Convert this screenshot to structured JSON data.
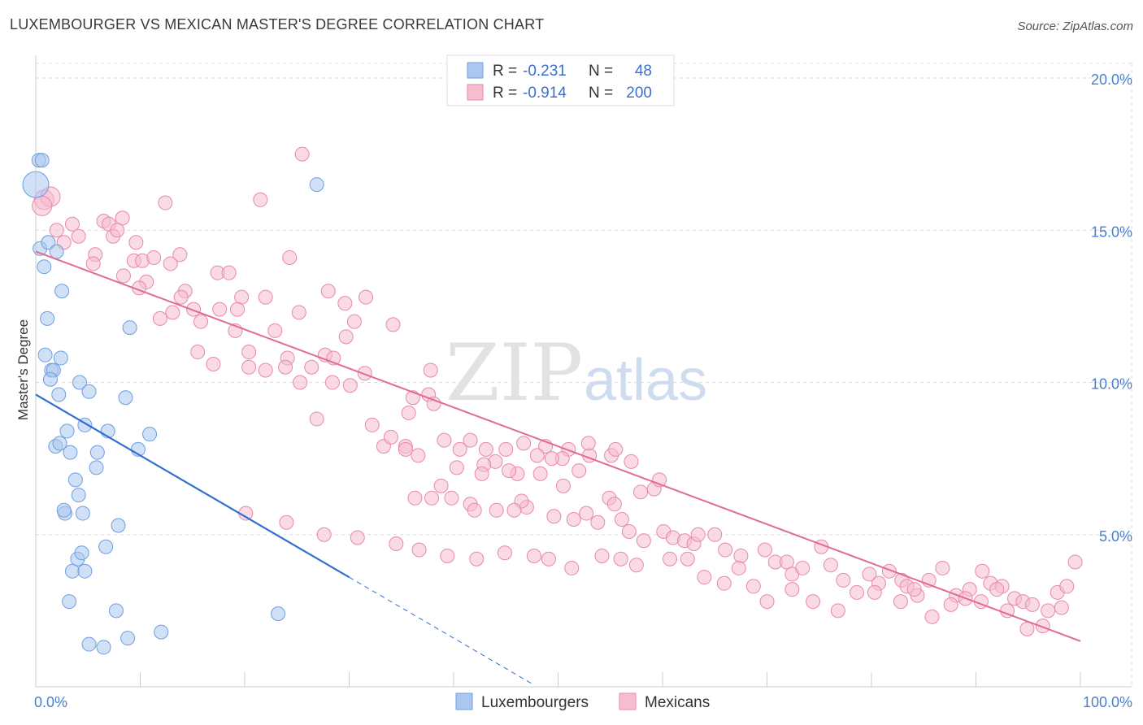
{
  "header": {
    "title": "LUXEMBOURGER VS MEXICAN MASTER'S DEGREE CORRELATION CHART",
    "source": "Source: ZipAtlas.com"
  },
  "watermark": {
    "zip": "ZIP",
    "atlas": "atlas"
  },
  "legend": {
    "rows": [
      {
        "r_label": "R =",
        "r_value": "-0.231",
        "n_label": "N =",
        "n_value": "48",
        "color": "#a9c7ef",
        "stroke": "#6f9ee0"
      },
      {
        "r_label": "R =",
        "r_value": "-0.914",
        "n_label": "N =",
        "n_value": "200",
        "color": "#f6bcd0",
        "stroke": "#e889a8"
      }
    ]
  },
  "bottom_legend": [
    {
      "label": "Luxembourgers",
      "color": "#a9c7ef",
      "stroke": "#6f9ee0"
    },
    {
      "label": "Mexicans",
      "color": "#f6bcd0",
      "stroke": "#e889a8"
    }
  ],
  "chart_data": {
    "type": "scatter",
    "title": "LUXEMBOURGER VS MEXICAN MASTER'S DEGREE CORRELATION CHART",
    "xlabel": "",
    "ylabel": "Master's Degree",
    "xlim": [
      0,
      100
    ],
    "ylim": [
      0,
      20
    ],
    "x_tick_labels": [
      "0.0%",
      "100.0%"
    ],
    "y_ticks": [
      5,
      10,
      15,
      20
    ],
    "y_tick_labels": [
      "5.0%",
      "10.0%",
      "15.0%",
      "20.0%"
    ],
    "grid": true,
    "colors": {
      "lux_fill": "#a9c7ef",
      "lux_stroke": "#6f9ee0",
      "lux_line": "#2f6fd0",
      "mex_fill": "#f6bcd0",
      "mex_stroke": "#e889a8",
      "mex_line": "#e06b94"
    },
    "series": [
      {
        "name": "Luxembourgers",
        "r": -0.231,
        "n": 48,
        "trend": {
          "x0": 0,
          "y0": 9.6,
          "x1": 30,
          "y1": 3.6,
          "dash_to_x": 47.5
        },
        "points": [
          [
            0,
            16.5
          ],
          [
            0.3,
            17.3
          ],
          [
            0.6,
            17.3
          ],
          [
            0.4,
            14.4
          ],
          [
            1.2,
            14.6
          ],
          [
            2.0,
            14.3
          ],
          [
            0.8,
            13.8
          ],
          [
            2.5,
            13.0
          ],
          [
            1.1,
            12.1
          ],
          [
            0.9,
            10.9
          ],
          [
            2.4,
            10.8
          ],
          [
            1.5,
            10.4
          ],
          [
            1.7,
            10.4
          ],
          [
            1.4,
            10.1
          ],
          [
            4.2,
            10.0
          ],
          [
            5.1,
            9.7
          ],
          [
            2.2,
            9.6
          ],
          [
            8.6,
            9.5
          ],
          [
            3.0,
            8.4
          ],
          [
            4.7,
            8.6
          ],
          [
            6.9,
            8.4
          ],
          [
            10.9,
            8.3
          ],
          [
            1.9,
            7.9
          ],
          [
            2.3,
            8.0
          ],
          [
            3.3,
            7.7
          ],
          [
            5.9,
            7.7
          ],
          [
            9.8,
            7.8
          ],
          [
            5.8,
            7.2
          ],
          [
            3.8,
            6.8
          ],
          [
            4.1,
            6.3
          ],
          [
            2.8,
            5.7
          ],
          [
            2.7,
            5.8
          ],
          [
            4.5,
            5.7
          ],
          [
            7.9,
            5.3
          ],
          [
            6.7,
            4.6
          ],
          [
            4.0,
            4.2
          ],
          [
            4.4,
            4.4
          ],
          [
            3.5,
            3.8
          ],
          [
            4.7,
            3.8
          ],
          [
            9.0,
            11.8
          ],
          [
            26.9,
            16.5
          ],
          [
            3.2,
            2.8
          ],
          [
            7.7,
            2.5
          ],
          [
            23.2,
            2.4
          ],
          [
            5.1,
            1.4
          ],
          [
            6.5,
            1.3
          ],
          [
            8.8,
            1.6
          ],
          [
            12.0,
            1.8
          ]
        ]
      },
      {
        "name": "Mexicans",
        "r": -0.914,
        "n": 200,
        "trend": {
          "x0": 0,
          "y0": 14.3,
          "x1": 100,
          "y1": 1.5
        },
        "points": [
          [
            0.8,
            16.0
          ],
          [
            1.4,
            16.1
          ],
          [
            0.6,
            15.8
          ],
          [
            2.0,
            15.0
          ],
          [
            3.5,
            15.2
          ],
          [
            2.7,
            14.6
          ],
          [
            4.1,
            14.8
          ],
          [
            6.5,
            15.3
          ],
          [
            8.3,
            15.4
          ],
          [
            9.6,
            14.6
          ],
          [
            7.0,
            15.2
          ],
          [
            7.4,
            14.8
          ],
          [
            7.8,
            15.0
          ],
          [
            12.4,
            15.9
          ],
          [
            21.5,
            16.0
          ],
          [
            25.5,
            17.5
          ],
          [
            5.7,
            14.2
          ],
          [
            9.4,
            14.0
          ],
          [
            10.2,
            14.0
          ],
          [
            11.3,
            14.1
          ],
          [
            12.9,
            13.9
          ],
          [
            13.8,
            14.2
          ],
          [
            24.3,
            14.1
          ],
          [
            5.5,
            13.9
          ],
          [
            8.4,
            13.5
          ],
          [
            10.6,
            13.3
          ],
          [
            9.9,
            13.1
          ],
          [
            17.4,
            13.6
          ],
          [
            18.5,
            13.6
          ],
          [
            14.3,
            13.0
          ],
          [
            13.9,
            12.8
          ],
          [
            19.7,
            12.8
          ],
          [
            22.0,
            12.8
          ],
          [
            28.0,
            13.0
          ],
          [
            31.6,
            12.8
          ],
          [
            29.6,
            12.6
          ],
          [
            15.1,
            12.4
          ],
          [
            13.1,
            12.3
          ],
          [
            17.6,
            12.4
          ],
          [
            19.3,
            12.4
          ],
          [
            25.2,
            12.3
          ],
          [
            34.2,
            11.9
          ],
          [
            11.9,
            12.1
          ],
          [
            15.8,
            12.0
          ],
          [
            19.1,
            11.7
          ],
          [
            22.9,
            11.7
          ],
          [
            29.7,
            11.5
          ],
          [
            30.5,
            12.0
          ],
          [
            15.5,
            11.0
          ],
          [
            20.4,
            11.0
          ],
          [
            24.1,
            10.8
          ],
          [
            27.7,
            10.9
          ],
          [
            28.5,
            10.8
          ],
          [
            17.0,
            10.6
          ],
          [
            20.4,
            10.5
          ],
          [
            22.0,
            10.4
          ],
          [
            23.9,
            10.5
          ],
          [
            26.4,
            10.5
          ],
          [
            31.5,
            10.3
          ],
          [
            37.8,
            10.4
          ],
          [
            25.3,
            10.0
          ],
          [
            28.4,
            10.0
          ],
          [
            30.1,
            9.9
          ],
          [
            37.6,
            9.6
          ],
          [
            36.1,
            9.5
          ],
          [
            38.1,
            9.3
          ],
          [
            35.7,
            9.0
          ],
          [
            26.9,
            8.8
          ],
          [
            32.2,
            8.6
          ],
          [
            33.3,
            7.9
          ],
          [
            35.4,
            7.9
          ],
          [
            34.0,
            8.2
          ],
          [
            39.1,
            8.1
          ],
          [
            41.6,
            8.1
          ],
          [
            45.0,
            7.8
          ],
          [
            46.7,
            8.0
          ],
          [
            48.8,
            7.9
          ],
          [
            51.0,
            7.8
          ],
          [
            55.1,
            7.6
          ],
          [
            57.0,
            7.4
          ],
          [
            53.0,
            7.6
          ],
          [
            50.4,
            7.5
          ],
          [
            48.0,
            7.6
          ],
          [
            49.4,
            7.5
          ],
          [
            43.1,
            7.8
          ],
          [
            40.3,
            7.2
          ],
          [
            44.0,
            7.4
          ],
          [
            42.9,
            7.3
          ],
          [
            46.1,
            7.0
          ],
          [
            48.3,
            7.0
          ],
          [
            52.9,
            8.0
          ],
          [
            55.5,
            7.8
          ],
          [
            40.6,
            7.8
          ],
          [
            42.7,
            7.0
          ],
          [
            38.8,
            6.6
          ],
          [
            45.3,
            7.1
          ],
          [
            36.6,
            7.6
          ],
          [
            35.4,
            7.8
          ],
          [
            52.0,
            7.1
          ],
          [
            57.9,
            6.4
          ],
          [
            59.2,
            6.5
          ],
          [
            59.7,
            6.8
          ],
          [
            50.5,
            6.6
          ],
          [
            54.9,
            6.2
          ],
          [
            47.0,
            5.9
          ],
          [
            46.5,
            6.1
          ],
          [
            55.4,
            6.0
          ],
          [
            37.9,
            6.2
          ],
          [
            39.8,
            6.2
          ],
          [
            36.3,
            6.2
          ],
          [
            41.6,
            6.0
          ],
          [
            42.0,
            5.8
          ],
          [
            44.1,
            5.8
          ],
          [
            45.8,
            5.8
          ],
          [
            49.6,
            5.6
          ],
          [
            51.5,
            5.5
          ],
          [
            52.7,
            5.7
          ],
          [
            53.8,
            5.4
          ],
          [
            56.1,
            5.5
          ],
          [
            56.8,
            5.1
          ],
          [
            58.2,
            4.8
          ],
          [
            60.1,
            5.1
          ],
          [
            61.0,
            4.9
          ],
          [
            62.1,
            4.8
          ],
          [
            63.0,
            4.7
          ],
          [
            63.4,
            5.0
          ],
          [
            65.0,
            5.0
          ],
          [
            66.0,
            4.5
          ],
          [
            67.5,
            4.3
          ],
          [
            69.8,
            4.5
          ],
          [
            70.8,
            4.1
          ],
          [
            71.9,
            4.1
          ],
          [
            72.4,
            3.7
          ],
          [
            73.4,
            3.9
          ],
          [
            75.2,
            4.6
          ],
          [
            76.1,
            4.0
          ],
          [
            77.3,
            3.5
          ],
          [
            79.8,
            3.7
          ],
          [
            80.7,
            3.4
          ],
          [
            81.7,
            3.8
          ],
          [
            82.9,
            3.5
          ],
          [
            83.4,
            3.3
          ],
          [
            84.4,
            3.0
          ],
          [
            85.5,
            3.5
          ],
          [
            86.8,
            3.9
          ],
          [
            88.1,
            3.0
          ],
          [
            89.4,
            3.2
          ],
          [
            90.6,
            3.8
          ],
          [
            91.4,
            3.4
          ],
          [
            92.5,
            3.3
          ],
          [
            93.7,
            2.9
          ],
          [
            94.5,
            2.8
          ],
          [
            95.4,
            2.7
          ],
          [
            96.9,
            2.5
          ],
          [
            97.8,
            3.1
          ],
          [
            98.7,
            3.3
          ],
          [
            99.5,
            4.1
          ],
          [
            98.2,
            2.6
          ],
          [
            96.4,
            2.0
          ],
          [
            94.9,
            1.9
          ],
          [
            93.0,
            2.5
          ],
          [
            92.0,
            3.2
          ],
          [
            90.5,
            2.8
          ],
          [
            89.0,
            2.9
          ],
          [
            87.6,
            2.7
          ],
          [
            85.8,
            2.3
          ],
          [
            84.1,
            3.2
          ],
          [
            82.8,
            2.8
          ],
          [
            80.3,
            3.1
          ],
          [
            78.6,
            3.1
          ],
          [
            76.8,
            2.5
          ],
          [
            74.4,
            2.8
          ],
          [
            72.4,
            3.2
          ],
          [
            70.0,
            2.8
          ],
          [
            68.7,
            3.3
          ],
          [
            67.3,
            3.9
          ],
          [
            65.9,
            3.4
          ],
          [
            64.0,
            3.6
          ],
          [
            62.4,
            4.2
          ],
          [
            60.7,
            4.2
          ],
          [
            57.5,
            4.0
          ],
          [
            56.0,
            4.2
          ],
          [
            54.2,
            4.3
          ],
          [
            51.3,
            3.9
          ],
          [
            49.1,
            4.2
          ],
          [
            47.7,
            4.3
          ],
          [
            44.9,
            4.4
          ],
          [
            42.2,
            4.2
          ],
          [
            39.4,
            4.3
          ],
          [
            36.7,
            4.5
          ],
          [
            34.5,
            4.7
          ],
          [
            30.8,
            4.9
          ],
          [
            27.6,
            5.0
          ],
          [
            24.0,
            5.4
          ],
          [
            20.1,
            5.7
          ]
        ]
      }
    ]
  }
}
